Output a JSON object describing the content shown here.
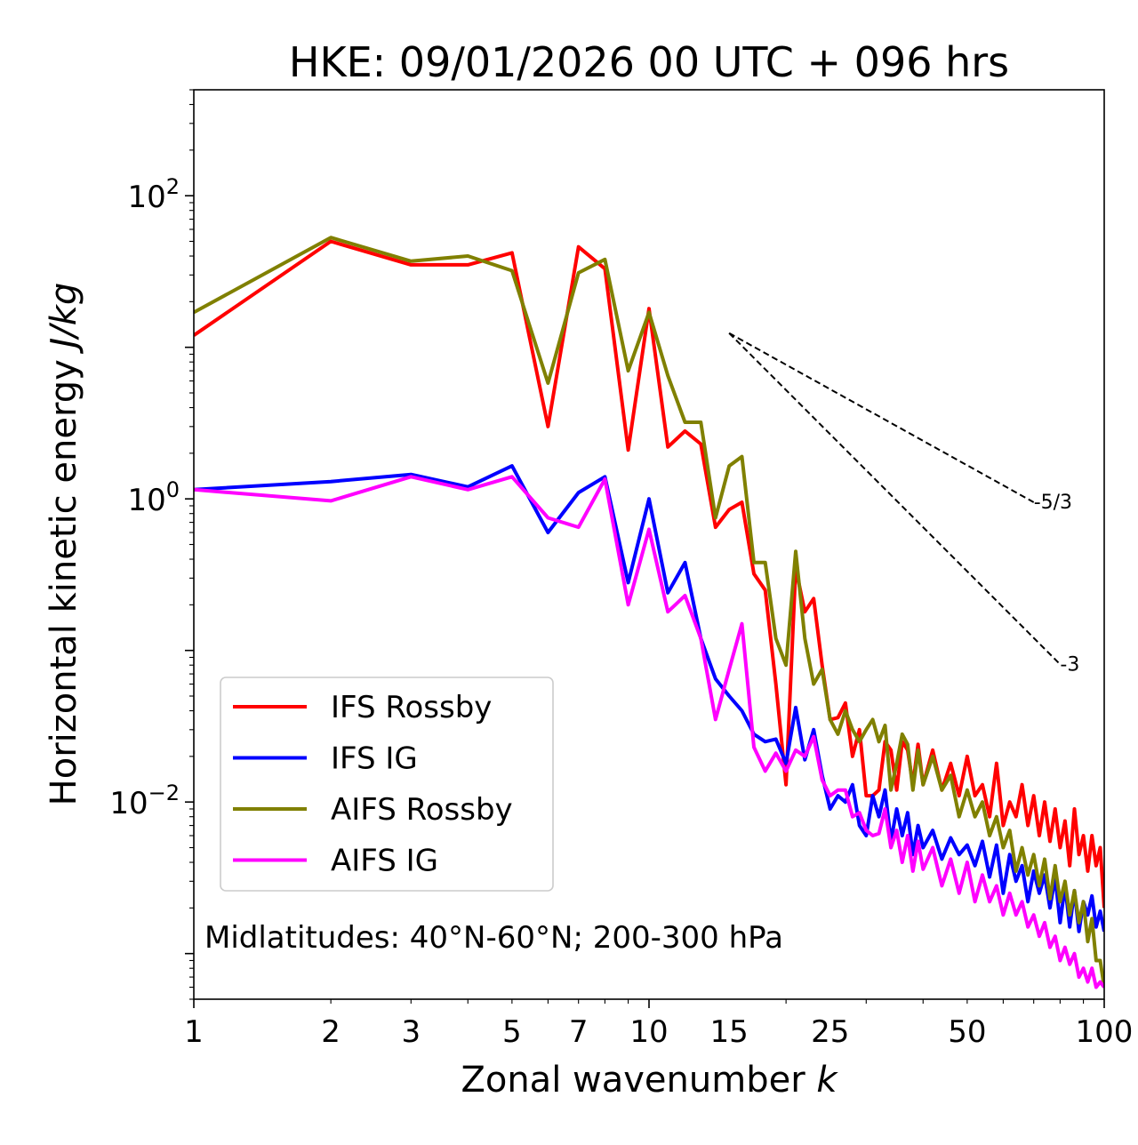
{
  "chart_data": {
    "type": "line",
    "title": "HKE: 09/01/2026 00 UTC + 096 hrs",
    "xlabel_prefix": "Zonal wavenumber ",
    "xlabel_var": "k",
    "ylabel_prefix": "Horizontal kinetic energy ",
    "ylabel_unit": "J/kg",
    "xscale": "log",
    "yscale": "log",
    "xlim": [
      1,
      100
    ],
    "ylim": [
      0.0005,
      500
    ],
    "x_ticks": [
      1,
      2,
      3,
      5,
      7,
      10,
      15,
      25,
      50,
      100
    ],
    "x_tick_labels": [
      "1",
      "2",
      "3",
      "5",
      "7",
      "10",
      "15",
      "25",
      "50",
      "100"
    ],
    "y_ticks": [
      {
        "value": 100,
        "base": "10",
        "exp": "2"
      },
      {
        "value": 1,
        "base": "10",
        "exp": "0"
      },
      {
        "value": 0.01,
        "base": "10",
        "exp": "−2"
      }
    ],
    "annotation": "Midlatitudes: 40°N-60°N; 200-300 hPa",
    "legend_position": "lower-left",
    "reference_lines": [
      {
        "label": "-5/3",
        "x": [
          15,
          70
        ],
        "y": [
          12.4,
          0.95
        ]
      },
      {
        "label": "-3",
        "x": [
          15,
          80
        ],
        "y": [
          12.4,
          0.081
        ]
      }
    ],
    "series": [
      {
        "name": "IFS Rossby",
        "color": "#ff0000",
        "x": [
          1,
          2,
          3,
          4,
          5,
          6,
          7,
          8,
          9,
          10,
          11,
          12,
          13,
          14,
          15,
          16,
          17,
          18,
          19,
          20,
          21,
          22,
          23,
          24,
          25,
          26,
          27,
          28,
          29,
          30,
          31,
          32,
          33,
          34,
          35,
          36,
          37,
          38,
          39,
          40,
          42,
          44,
          46,
          48,
          50,
          52,
          54,
          56,
          58,
          60,
          62,
          64,
          66,
          68,
          70,
          72,
          74,
          76,
          78,
          80,
          82,
          84,
          86,
          88,
          90,
          92,
          94,
          96,
          98,
          100
        ],
        "values": [
          12,
          50,
          35,
          35,
          42,
          3.0,
          46,
          33,
          2.1,
          18,
          2.2,
          2.8,
          2.3,
          0.65,
          0.85,
          0.95,
          0.32,
          0.25,
          0.06,
          0.013,
          0.35,
          0.18,
          0.22,
          0.08,
          0.035,
          0.036,
          0.045,
          0.02,
          0.03,
          0.011,
          0.011,
          0.012,
          0.025,
          0.022,
          0.012,
          0.025,
          0.022,
          0.013,
          0.024,
          0.013,
          0.022,
          0.012,
          0.018,
          0.011,
          0.02,
          0.011,
          0.013,
          0.008,
          0.018,
          0.007,
          0.01,
          0.008,
          0.013,
          0.007,
          0.011,
          0.006,
          0.01,
          0.0055,
          0.009,
          0.005,
          0.0075,
          0.0038,
          0.009,
          0.0045,
          0.006,
          0.0035,
          0.006,
          0.0038,
          0.005,
          0.002
        ]
      },
      {
        "name": "IFS IG",
        "color": "#0000ff",
        "x": [
          1,
          2,
          3,
          4,
          5,
          6,
          7,
          8,
          9,
          10,
          11,
          12,
          13,
          14,
          15,
          16,
          17,
          18,
          19,
          20,
          21,
          22,
          23,
          24,
          25,
          26,
          27,
          28,
          29,
          30,
          31,
          32,
          33,
          34,
          35,
          36,
          37,
          38,
          39,
          40,
          42,
          44,
          46,
          48,
          50,
          52,
          54,
          56,
          58,
          60,
          62,
          64,
          66,
          68,
          70,
          72,
          74,
          76,
          78,
          80,
          82,
          84,
          86,
          88,
          90,
          92,
          94,
          96,
          98,
          100
        ],
        "values": [
          1.15,
          1.3,
          1.45,
          1.2,
          1.65,
          0.6,
          1.1,
          1.4,
          0.28,
          1.0,
          0.24,
          0.38,
          0.12,
          0.065,
          0.05,
          0.04,
          0.028,
          0.025,
          0.026,
          0.018,
          0.042,
          0.019,
          0.03,
          0.015,
          0.009,
          0.011,
          0.01,
          0.013,
          0.007,
          0.006,
          0.011,
          0.008,
          0.012,
          0.0055,
          0.009,
          0.006,
          0.0085,
          0.0045,
          0.007,
          0.005,
          0.0065,
          0.0042,
          0.0058,
          0.0045,
          0.0052,
          0.0038,
          0.0055,
          0.0032,
          0.0052,
          0.0025,
          0.0045,
          0.003,
          0.0038,
          0.0022,
          0.0035,
          0.0025,
          0.0033,
          0.002,
          0.0032,
          0.0016,
          0.0028,
          0.0015,
          0.0026,
          0.0014,
          0.0022,
          0.0018,
          0.0024,
          0.0015,
          0.0019,
          0.0014
        ]
      },
      {
        "name": "AIFS Rossby",
        "color": "#808000",
        "x": [
          1,
          2,
          3,
          4,
          5,
          6,
          7,
          8,
          9,
          10,
          11,
          12,
          13,
          14,
          15,
          16,
          17,
          18,
          19,
          20,
          21,
          22,
          23,
          24,
          25,
          26,
          27,
          28,
          29,
          30,
          31,
          32,
          33,
          34,
          35,
          36,
          37,
          38,
          39,
          40,
          42,
          44,
          46,
          48,
          50,
          52,
          54,
          56,
          58,
          60,
          62,
          64,
          66,
          68,
          70,
          72,
          74,
          76,
          78,
          80,
          82,
          84,
          86,
          88,
          90,
          92,
          94,
          96,
          98,
          100
        ],
        "values": [
          17,
          53,
          37,
          40,
          32,
          5.8,
          31,
          38,
          7.0,
          17,
          6.5,
          3.2,
          3.2,
          0.75,
          1.65,
          1.9,
          0.38,
          0.38,
          0.12,
          0.08,
          0.45,
          0.12,
          0.06,
          0.075,
          0.035,
          0.028,
          0.04,
          0.03,
          0.025,
          0.03,
          0.035,
          0.025,
          0.032,
          0.012,
          0.018,
          0.028,
          0.024,
          0.012,
          0.022,
          0.013,
          0.02,
          0.012,
          0.015,
          0.008,
          0.012,
          0.008,
          0.01,
          0.006,
          0.008,
          0.005,
          0.0065,
          0.0035,
          0.005,
          0.0033,
          0.0045,
          0.0028,
          0.0042,
          0.0023,
          0.0038,
          0.0022,
          0.003,
          0.0018,
          0.0026,
          0.0016,
          0.0022,
          0.0012,
          0.0017,
          0.0009,
          0.0009,
          0.0006
        ]
      },
      {
        "name": "AIFS IG",
        "color": "#ff00ff",
        "x": [
          1,
          2,
          3,
          4,
          5,
          6,
          7,
          8,
          9,
          10,
          11,
          12,
          13,
          14,
          15,
          16,
          17,
          18,
          19,
          20,
          21,
          22,
          23,
          24,
          25,
          26,
          27,
          28,
          29,
          30,
          31,
          32,
          33,
          34,
          35,
          36,
          37,
          38,
          39,
          40,
          42,
          44,
          46,
          48,
          50,
          52,
          54,
          56,
          58,
          60,
          62,
          64,
          66,
          68,
          70,
          72,
          74,
          76,
          78,
          80,
          82,
          84,
          86,
          88,
          90,
          92,
          94,
          96,
          98,
          100
        ],
        "values": [
          1.15,
          0.97,
          1.4,
          1.15,
          1.4,
          0.75,
          0.65,
          1.35,
          0.2,
          0.63,
          0.18,
          0.23,
          0.12,
          0.035,
          0.075,
          0.15,
          0.023,
          0.016,
          0.021,
          0.016,
          0.022,
          0.02,
          0.027,
          0.014,
          0.011,
          0.012,
          0.012,
          0.008,
          0.0085,
          0.0065,
          0.006,
          0.0062,
          0.009,
          0.005,
          0.0065,
          0.004,
          0.006,
          0.0035,
          0.0055,
          0.0036,
          0.005,
          0.0028,
          0.0042,
          0.0025,
          0.004,
          0.0022,
          0.0033,
          0.0022,
          0.0028,
          0.0018,
          0.0025,
          0.0018,
          0.0022,
          0.0015,
          0.0018,
          0.0013,
          0.0016,
          0.0011,
          0.0013,
          0.0009,
          0.0011,
          0.00085,
          0.001,
          0.0007,
          0.0008,
          0.00065,
          0.0008,
          0.0006,
          0.00065,
          0.0006
        ]
      }
    ]
  }
}
